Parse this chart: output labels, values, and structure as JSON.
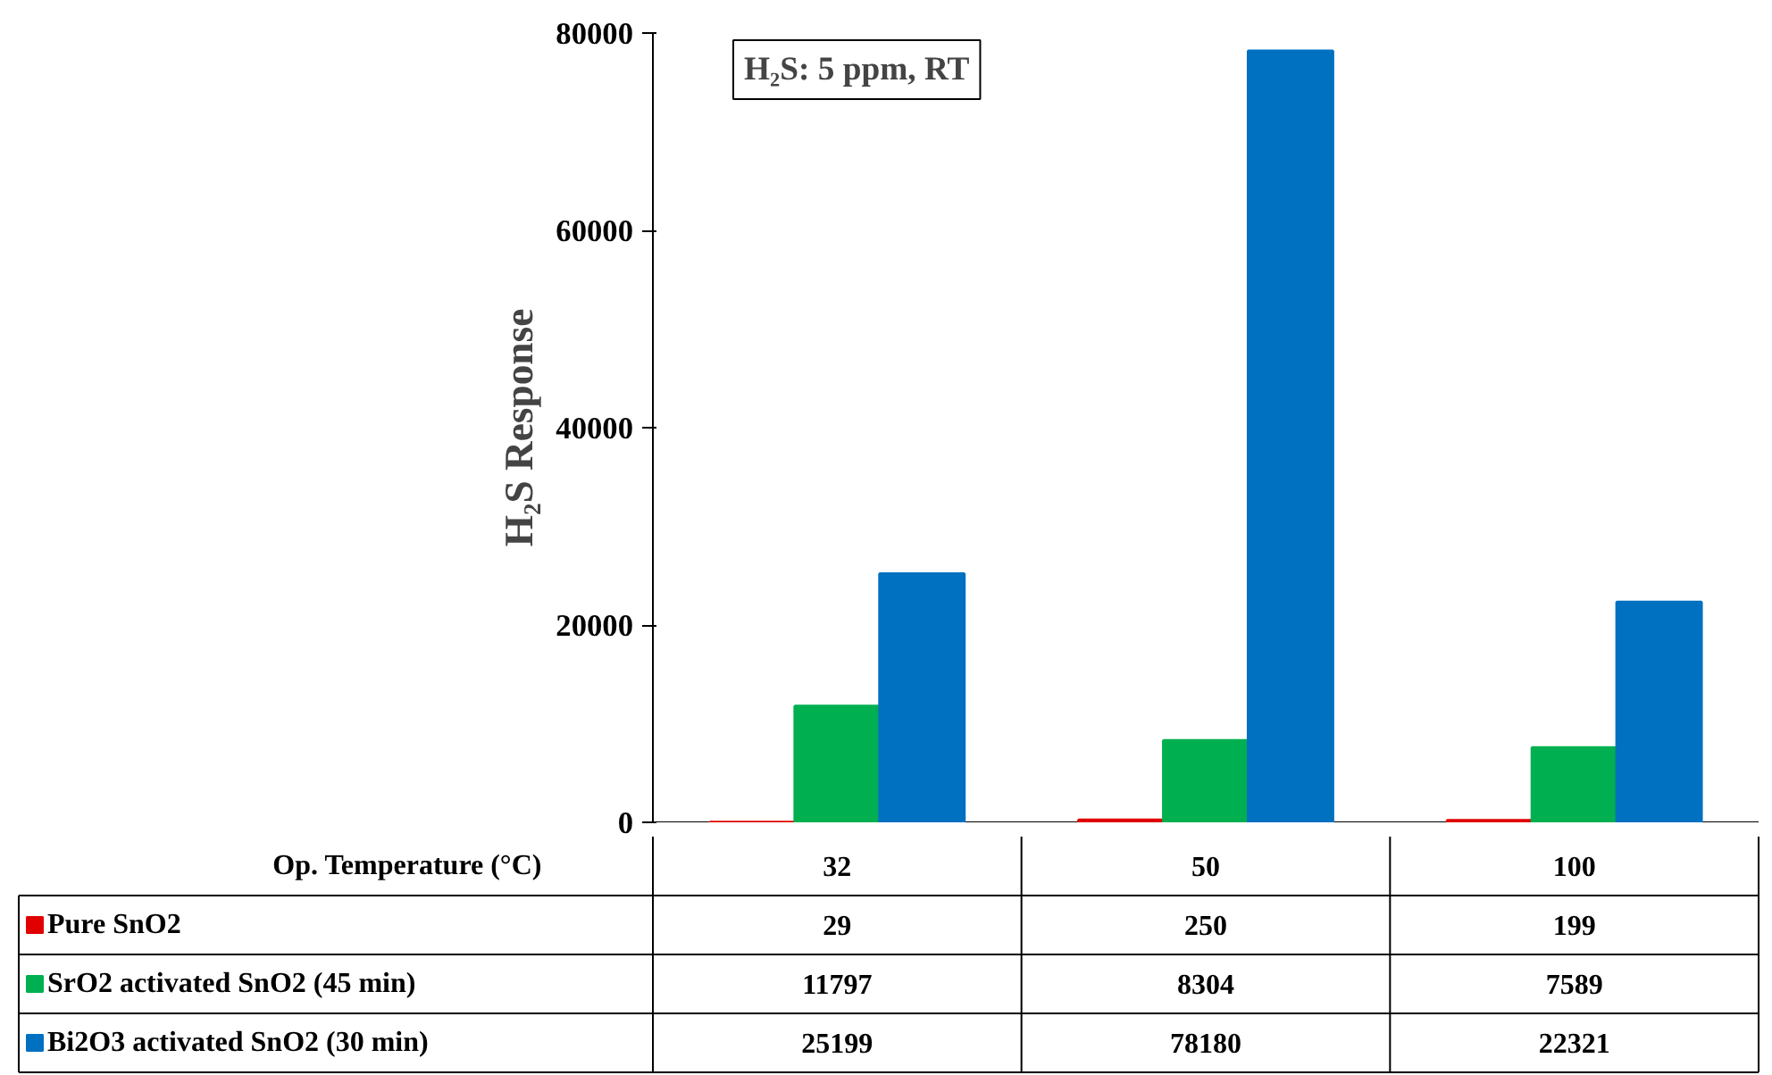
{
  "chart_data": {
    "type": "bar",
    "ylabel": "H₂S Response",
    "xlabel": "Op. Temperature (°C)",
    "annotations": [
      "H₂S: 5 ppm, RT"
    ],
    "categories": [
      "32",
      "50",
      "100"
    ],
    "series": [
      {
        "name": "Pure SnO2",
        "color": "#e00000",
        "values": [
          29,
          250,
          199
        ]
      },
      {
        "name": "SrO2 activated SnO2 (45 min)",
        "color": "#00b050",
        "values": [
          11797,
          8304,
          7589
        ]
      },
      {
        "name": "Bi2O3 activated SnO2 (30 min)",
        "color": "#0070c0",
        "values": [
          25199,
          78180,
          22321
        ]
      }
    ],
    "ylim": [
      0,
      80000
    ],
    "yticks": [
      0,
      20000,
      40000,
      60000,
      80000
    ],
    "data_labels": true,
    "legend": "bottom",
    "grid": false
  }
}
